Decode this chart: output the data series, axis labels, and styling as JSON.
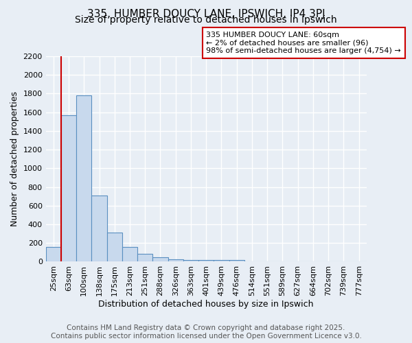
{
  "title": "335, HUMBER DOUCY LANE, IPSWICH, IP4 3PJ",
  "subtitle": "Size of property relative to detached houses in Ipswich",
  "xlabel": "Distribution of detached houses by size in Ipswich",
  "ylabel": "Number of detached properties",
  "bar_labels": [
    "25sqm",
    "63sqm",
    "100sqm",
    "138sqm",
    "175sqm",
    "213sqm",
    "251sqm",
    "288sqm",
    "326sqm",
    "363sqm",
    "401sqm",
    "439sqm",
    "476sqm",
    "514sqm",
    "551sqm",
    "589sqm",
    "627sqm",
    "664sqm",
    "702sqm",
    "739sqm",
    "777sqm"
  ],
  "bar_values": [
    160,
    1570,
    1780,
    710,
    315,
    155,
    85,
    50,
    25,
    20,
    15,
    15,
    15,
    0,
    0,
    0,
    0,
    0,
    0,
    0,
    0
  ],
  "bar_color": "#c8d9ed",
  "bar_edge_color": "#5a8fc0",
  "ylim": [
    0,
    2200
  ],
  "yticks": [
    0,
    200,
    400,
    600,
    800,
    1000,
    1200,
    1400,
    1600,
    1800,
    2000,
    2200
  ],
  "red_line_index": 1,
  "annotation_line1": "335 HUMBER DOUCY LANE: 60sqm",
  "annotation_line2": "← 2% of detached houses are smaller (96)",
  "annotation_line3": "98% of semi-detached houses are larger (4,754) →",
  "annotation_box_color": "#ffffff",
  "annotation_box_edge": "#cc0000",
  "footer_line1": "Contains HM Land Registry data © Crown copyright and database right 2025.",
  "footer_line2": "Contains public sector information licensed under the Open Government Licence v3.0.",
  "background_color": "#e8eef5",
  "plot_bg_color": "#e8eef5",
  "grid_color": "#ffffff",
  "title_fontsize": 11,
  "subtitle_fontsize": 10,
  "axis_label_fontsize": 9,
  "tick_fontsize": 8,
  "annotation_fontsize": 8,
  "footer_fontsize": 7.5
}
